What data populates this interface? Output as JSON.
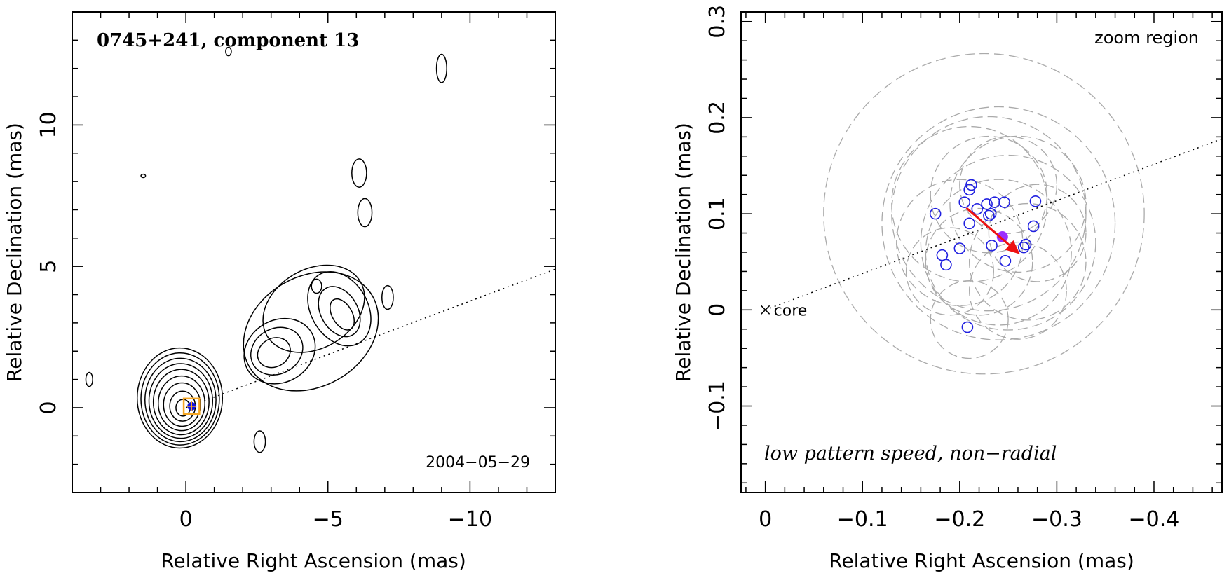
{
  "chart_data": [
    {
      "type": "contour",
      "title": "0745+241, component 13",
      "date_label": "2004−05−29",
      "xlabel": "Relative Right Ascension (mas)",
      "ylabel": "Relative Declination (mas)",
      "xlim": [
        4,
        -13
      ],
      "ylim": [
        -3,
        14
      ],
      "x_ticks": [
        0,
        -5,
        -10
      ],
      "x_tick_labels": [
        "0",
        "−5",
        "−10"
      ],
      "y_ticks": [
        0,
        5,
        10
      ],
      "y_tick_labels": [
        "0",
        "5",
        "10"
      ],
      "core_contours": {
        "center": [
          0.1,
          0
        ],
        "levels_rx": [
          0.25,
          0.45,
          0.65,
          0.82,
          0.98,
          1.12,
          1.25,
          1.38,
          1.5
        ],
        "ry_scale": 1.18,
        "offset_scale": [
          -0.45,
          0.55
        ]
      },
      "jet_contours": [
        {
          "x": -3.3,
          "y": 2.0,
          "rx": 1.3,
          "ry": 1.1
        },
        {
          "x": -3.2,
          "y": 2.0,
          "rx": 0.95,
          "ry": 0.8
        },
        {
          "x": -3.1,
          "y": 1.95,
          "rx": 0.6,
          "ry": 0.5
        },
        {
          "x": -5.4,
          "y": 3.5,
          "rx": 1.0,
          "ry": 1.4
        },
        {
          "x": -5.4,
          "y": 3.4,
          "rx": 0.65,
          "ry": 0.95
        },
        {
          "x": -5.5,
          "y": 3.3,
          "rx": 0.35,
          "ry": 0.6
        },
        {
          "x": -4.4,
          "y": 2.7,
          "rx": 2.5,
          "ry": 1.95
        },
        {
          "x": -4.5,
          "y": 3.5,
          "rx": 1.9,
          "ry": 1.4
        }
      ],
      "isolated_contours": [
        {
          "x": -6.1,
          "y": 8.3,
          "rx": 0.26,
          "ry": 0.5
        },
        {
          "x": -6.3,
          "y": 6.9,
          "rx": 0.25,
          "ry": 0.5
        },
        {
          "x": -4.6,
          "y": 4.3,
          "rx": 0.18,
          "ry": 0.25
        },
        {
          "x": -7.1,
          "y": 3.9,
          "rx": 0.2,
          "ry": 0.42
        },
        {
          "x": -2.6,
          "y": -1.2,
          "rx": 0.2,
          "ry": 0.38
        },
        {
          "x": 3.4,
          "y": 1.0,
          "rx": 0.12,
          "ry": 0.25
        },
        {
          "x": -9.0,
          "y": 12.0,
          "rx": 0.18,
          "ry": 0.5
        },
        {
          "x": -1.5,
          "y": 12.6,
          "rx": 0.1,
          "ry": 0.15
        },
        {
          "x": 1.5,
          "y": 8.2,
          "rx": 0.08,
          "ry": 0.06
        }
      ],
      "jet_axis": {
        "x0": 0,
        "y0": 0,
        "x1": -13,
        "y1": 4.9
      },
      "marker": {
        "x": -0.2,
        "y": 0.05,
        "size": 0.55,
        "color": "#f5a623",
        "dot_color": "#1010e0"
      },
      "colors": {
        "contour": "#000000",
        "axis": "#000000"
      }
    },
    {
      "type": "scatter",
      "annotation_top": "zoom region",
      "annotation_bottom": "low pattern speed, non−radial",
      "core_label": "core",
      "xlabel": "Relative Right Ascension (mas)",
      "ylabel": "Relative Declination (mas)",
      "xlim": [
        0.025,
        -0.47
      ],
      "ylim": [
        -0.19,
        0.31
      ],
      "x_ticks": [
        0,
        -0.1,
        -0.2,
        -0.3,
        -0.4
      ],
      "x_tick_labels": [
        "0",
        "−0.1",
        "−0.2",
        "−0.3",
        "−0.4"
      ],
      "y_ticks": [
        -0.1,
        0,
        0.1,
        0.2,
        0.3
      ],
      "y_tick_labels": [
        "−0.1",
        "0",
        "0.1",
        "0.2",
        "0.3"
      ],
      "points": [
        {
          "x": -0.212,
          "y": 0.13
        },
        {
          "x": -0.21,
          "y": 0.125
        },
        {
          "x": -0.205,
          "y": 0.112
        },
        {
          "x": -0.218,
          "y": 0.105
        },
        {
          "x": -0.228,
          "y": 0.11
        },
        {
          "x": -0.236,
          "y": 0.112
        },
        {
          "x": -0.246,
          "y": 0.112
        },
        {
          "x": -0.232,
          "y": 0.1
        },
        {
          "x": -0.23,
          "y": 0.098
        },
        {
          "x": -0.175,
          "y": 0.1
        },
        {
          "x": -0.21,
          "y": 0.09
        },
        {
          "x": -0.278,
          "y": 0.113
        },
        {
          "x": -0.276,
          "y": 0.087
        },
        {
          "x": -0.233,
          "y": 0.067
        },
        {
          "x": -0.2,
          "y": 0.064
        },
        {
          "x": -0.268,
          "y": 0.068
        },
        {
          "x": -0.266,
          "y": 0.065
        },
        {
          "x": -0.182,
          "y": 0.057
        },
        {
          "x": -0.186,
          "y": 0.047
        },
        {
          "x": -0.247,
          "y": 0.051
        },
        {
          "x": -0.208,
          "y": -0.018
        }
      ],
      "error_circles": [
        {
          "x": -0.225,
          "y": 0.1,
          "r": 0.165
        },
        {
          "x": -0.24,
          "y": 0.09,
          "r": 0.12
        },
        {
          "x": -0.23,
          "y": 0.1,
          "r": 0.1
        },
        {
          "x": -0.25,
          "y": 0.07,
          "r": 0.09
        },
        {
          "x": -0.21,
          "y": 0.11,
          "r": 0.08
        },
        {
          "x": -0.26,
          "y": 0.11,
          "r": 0.07
        },
        {
          "x": -0.24,
          "y": 0.06,
          "r": 0.075
        },
        {
          "x": -0.27,
          "y": 0.05,
          "r": 0.06
        },
        {
          "x": -0.2,
          "y": 0.07,
          "r": 0.065
        },
        {
          "x": -0.23,
          "y": 0.12,
          "r": 0.06
        },
        {
          "x": -0.25,
          "y": 0.13,
          "r": 0.05
        },
        {
          "x": -0.28,
          "y": 0.08,
          "r": 0.05
        },
        {
          "x": -0.22,
          "y": 0.05,
          "r": 0.055
        },
        {
          "x": -0.26,
          "y": 0.02,
          "r": 0.05
        },
        {
          "x": -0.21,
          "y": -0.01,
          "r": 0.04
        },
        {
          "x": -0.19,
          "y": 0.04,
          "r": 0.045
        }
      ],
      "mean_position": {
        "x": -0.244,
        "y": 0.076
      },
      "motion_vector": {
        "x0": -0.207,
        "y0": 0.106,
        "x1": -0.262,
        "y1": 0.058
      },
      "jet_axis": {
        "x0": 0,
        "y0": 0,
        "x1": -0.47,
        "y1": 0.178
      },
      "core": {
        "x": 0,
        "y": 0
      },
      "colors": {
        "point": "#2020e0",
        "mean": "#9b30ff",
        "vector": "#ee1111",
        "error_circle": "#aaaaaa",
        "axis": "#000000"
      }
    }
  ]
}
